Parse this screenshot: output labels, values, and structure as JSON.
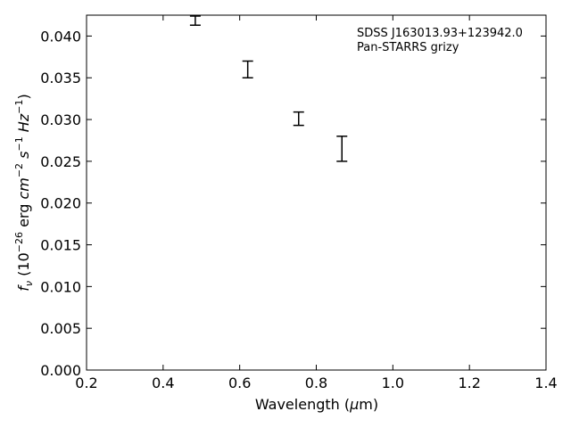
{
  "chart_data": {
    "type": "scatter",
    "title": "",
    "xlabel": "Wavelength (μm)",
    "ylabel": "f_ν (10^-26 erg cm^-2 s^-1 Hz^-1)",
    "xlim": [
      0.2,
      1.4
    ],
    "ylim": [
      0.0,
      0.0425
    ],
    "x_ticks": [
      0.2,
      0.4,
      0.6,
      0.8,
      1.0,
      1.2,
      1.4
    ],
    "x_tick_labels": [
      "0.2",
      "0.4",
      "0.6",
      "0.8",
      "1.0",
      "1.2",
      "1.4"
    ],
    "y_ticks": [
      0.0,
      0.005,
      0.01,
      0.015,
      0.02,
      0.025,
      0.03,
      0.035,
      0.04
    ],
    "y_tick_labels": [
      "0.000",
      "0.005",
      "0.010",
      "0.015",
      "0.020",
      "0.025",
      "0.030",
      "0.035",
      "0.040"
    ],
    "grid": false,
    "annotations": [
      "SDSS J163013.93+123942.0",
      "Pan-STARRS grizy"
    ],
    "annotation_placement": "top-right",
    "series": [
      {
        "marker": "errorbar",
        "color": "#000000",
        "points": [
          {
            "x": 0.484,
            "y": 0.0419,
            "yerr": 0.0006
          },
          {
            "x": 0.621,
            "y": 0.036,
            "yerr": 0.001
          },
          {
            "x": 0.754,
            "y": 0.0301,
            "yerr": 0.0008
          },
          {
            "x": 0.867,
            "y": 0.0265,
            "yerr": 0.0015
          }
        ]
      }
    ]
  }
}
